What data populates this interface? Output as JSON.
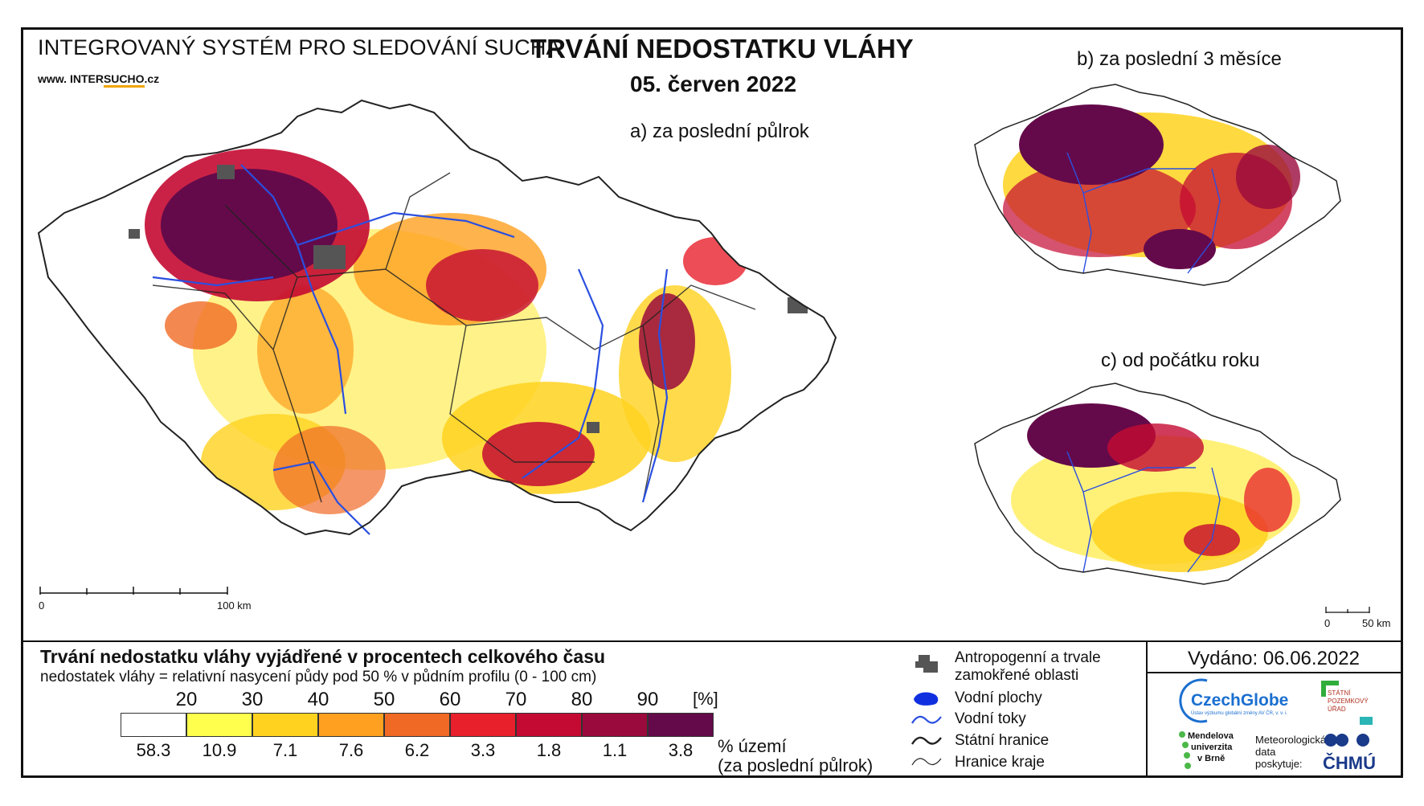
{
  "header": {
    "system_name": "INTEGROVANÝ SYSTÉM PRO SLEDOVÁNÍ SUCHA",
    "website_prefix": "www.",
    "website_mid": "INTER",
    "website_brand": "SUCHO",
    "website_suffix": ".cz",
    "title": "TRVÁNÍ NEDOSTATKU VLÁHY",
    "date": "05. červen 2022"
  },
  "maps": {
    "a_label": "a) za poslední půlrok",
    "b_label": "b) za poslední 3 měsíce",
    "c_label": "c) od počátku roku",
    "scale_a": {
      "start": "0",
      "end": "100 km"
    },
    "scale_small": {
      "start": "0",
      "end": "50 km"
    }
  },
  "legend": {
    "title": "Trvání nedostatku vláhy vyjádřené v procentech celkového času",
    "subtitle": "nedostatek vláhy = relativní nasycení půdy pod 50 % v půdním profilu (0 - 100 cm)",
    "ticks": [
      "20",
      "30",
      "40",
      "50",
      "60",
      "70",
      "80",
      "90"
    ],
    "unit": "[%]",
    "classes": [
      {
        "color": "#ffffff",
        "percent": "58.3"
      },
      {
        "color": "#ffff4d",
        "percent": "10.9"
      },
      {
        "color": "#ffd21f",
        "percent": "7.1"
      },
      {
        "color": "#ffa020",
        "percent": "7.6"
      },
      {
        "color": "#f06a26",
        "percent": "6.2"
      },
      {
        "color": "#e8202c",
        "percent": "3.3"
      },
      {
        "color": "#c40a32",
        "percent": "1.8"
      },
      {
        "color": "#9a0a3c",
        "percent": "1.1"
      },
      {
        "color": "#640a4a",
        "percent": "3.8"
      }
    ],
    "area_note_1": "% území",
    "area_note_2": "(za poslední půlrok)"
  },
  "symbols": {
    "anthropogenic_1": "Antropogenní a trvale",
    "anthropogenic_2": "zamokřené oblasti",
    "water_bodies": "Vodní plochy",
    "rivers": "Vodní toky",
    "state_border": "Státní hranice",
    "region_border": "Hranice kraje"
  },
  "footer": {
    "issued": "Vydáno: 06.06.2022",
    "czechglobe": "CzechGlobe",
    "czechglobe_sub": "Ústav výzkumu globální změny AV ČR, v. v. i.",
    "spu_1": "STÁTNÍ",
    "spu_2": "POZEMKOVÝ",
    "spu_3": "ÚŘAD",
    "mendel_1": "Mendelova",
    "mendel_2": "univerzita",
    "mendel_3": "v Brně",
    "meteo_1": "Meteorologická",
    "meteo_2": "data",
    "meteo_3": "poskytuje:",
    "chmu": "ČHMÚ"
  },
  "colors": {
    "river": "#2a4fe0",
    "urban": "#555555",
    "border": "#222222"
  }
}
